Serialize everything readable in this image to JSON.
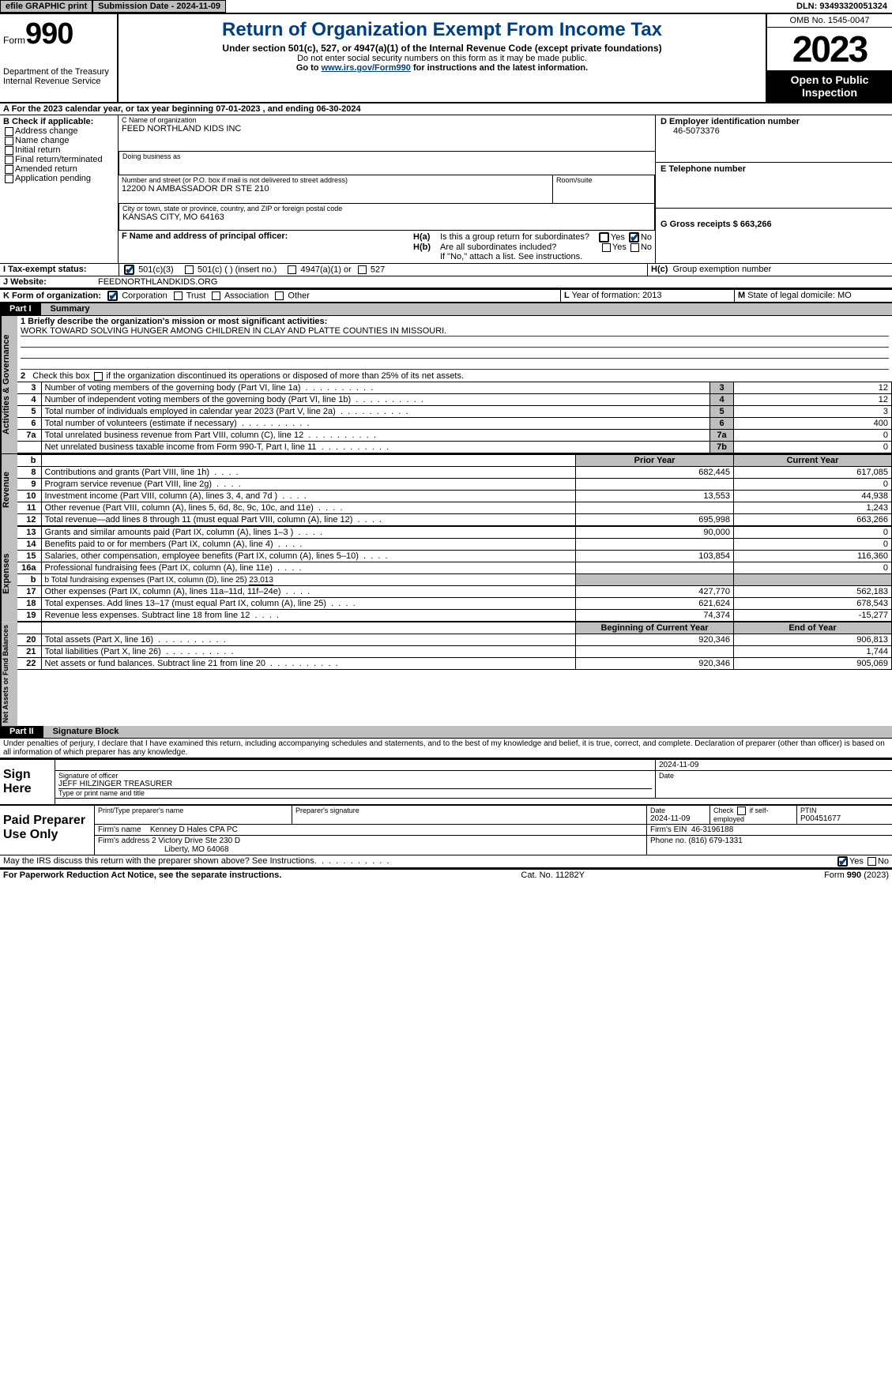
{
  "topbar": {
    "print_label": "efile GRAPHIC print",
    "submission_label": "Submission Date - 2024-11-09",
    "dln_label": "DLN: 93493320051324"
  },
  "header": {
    "form_word": "Form",
    "form_num": "990",
    "dept": "Department of the Treasury Internal Revenue Service",
    "title": "Return of Organization Exempt From Income Tax",
    "sub": "Under section 501(c), 527, or 4947(a)(1) of the Internal Revenue Code (except private foundations)",
    "note1": "Do not enter social security numbers on this form as it may be made public.",
    "note2_pre": "Go to ",
    "note2_link": "www.irs.gov/Form990",
    "note2_post": " for instructions and the latest information.",
    "omb": "OMB No. 1545-0047",
    "year": "2023",
    "inspect": "Open to Public Inspection"
  },
  "row_a": "A For the 2023 calendar year, or tax year beginning 07-01-2023    , and ending 06-30-2024",
  "section_b": {
    "title": "B Check if applicable:",
    "options": [
      "Address change",
      "Name change",
      "Initial return",
      "Final return/terminated",
      "Amended return",
      "Application pending"
    ]
  },
  "section_c": {
    "name_label": "C Name of organization",
    "name": "FEED NORTHLAND KIDS INC",
    "dba_label": "Doing business as",
    "addr_label": "Number and street (or P.O. box if mail is not delivered to street address)",
    "room_label": "Room/suite",
    "addr": "12200 N AMBASSADOR DR STE 210",
    "city_label": "City or town, state or province, country, and ZIP or foreign postal code",
    "city": "KANSAS CITY, MO  64163"
  },
  "section_d": {
    "label": "D Employer identification number",
    "value": "46-5073376"
  },
  "section_e": {
    "label": "E Telephone number"
  },
  "section_f": {
    "label": "F  Name and address of principal officer:"
  },
  "section_g": {
    "label": "G Gross receipts $ 663,266"
  },
  "section_h": {
    "a": "H(a)  Is this a group return for subordinates?",
    "b": "H(b)  Are all subordinates included?",
    "b_note": "If \"No,\" attach a list. See instructions.",
    "c": "H(c)  Group exemption number",
    "yes": "Yes",
    "no": "No"
  },
  "row_i": {
    "label": "I   Tax-exempt status:",
    "o1": "501(c)(3)",
    "o2": "501(c) (   ) (insert no.)",
    "o3": "4947(a)(1) or",
    "o4": "527"
  },
  "row_j": {
    "label": "J   Website:",
    "value": "FEEDNORTHLANDKIDS.ORG"
  },
  "row_k": {
    "label": "K Form of organization:",
    "o1": "Corporation",
    "o2": "Trust",
    "o3": "Association",
    "o4": "Other",
    "l_label": "L Year of formation: 2013",
    "m_label": "M State of legal domicile: MO"
  },
  "part1": {
    "bar": "Part I",
    "title": "Summary"
  },
  "summary": {
    "vlabels": {
      "gov": "Activities & Governance",
      "rev": "Revenue",
      "exp": "Expenses",
      "net": "Net Assets or Fund Balances"
    },
    "q1_label": "1   Briefly describe the organization's mission or most significant activities:",
    "q1_value": "WORK TOWARD SOLVING HUNGER AMONG CHILDREN IN CLAY AND PLATTE COUNTIES IN MISSOURI.",
    "q2": "2   Check this box        if the organization discontinued its operations or disposed of more than 25% of its net assets.",
    "gov_rows": [
      {
        "n": "3",
        "desc": "Number of voting members of the governing body (Part VI, line 1a)",
        "box": "3",
        "val": "12"
      },
      {
        "n": "4",
        "desc": "Number of independent voting members of the governing body (Part VI, line 1b)",
        "box": "4",
        "val": "12"
      },
      {
        "n": "5",
        "desc": "Total number of individuals employed in calendar year 2023 (Part V, line 2a)",
        "box": "5",
        "val": "3"
      },
      {
        "n": "6",
        "desc": "Total number of volunteers (estimate if necessary)",
        "box": "6",
        "val": "400"
      },
      {
        "n": "7a",
        "desc": "Total unrelated business revenue from Part VIII, column (C), line 12",
        "box": "7a",
        "val": "0"
      },
      {
        "n": "",
        "desc": "Net unrelated business taxable income from Form 990-T, Part I, line 11",
        "box": "7b",
        "val": "0"
      }
    ],
    "col_headers": {
      "b": "b",
      "prior": "Prior Year",
      "curr": "Current Year",
      "begin": "Beginning of Current Year",
      "end": "End of Year"
    },
    "rev_rows": [
      {
        "n": "8",
        "desc": "Contributions and grants (Part VIII, line 1h)",
        "p": "682,445",
        "c": "617,085"
      },
      {
        "n": "9",
        "desc": "Program service revenue (Part VIII, line 2g)",
        "p": "",
        "c": "0"
      },
      {
        "n": "10",
        "desc": "Investment income (Part VIII, column (A), lines 3, 4, and 7d )",
        "p": "13,553",
        "c": "44,938"
      },
      {
        "n": "11",
        "desc": "Other revenue (Part VIII, column (A), lines 5, 6d, 8c, 9c, 10c, and 11e)",
        "p": "",
        "c": "1,243"
      },
      {
        "n": "12",
        "desc": "Total revenue—add lines 8 through 11 (must equal Part VIII, column (A), line 12)",
        "p": "695,998",
        "c": "663,266"
      }
    ],
    "exp_rows": [
      {
        "n": "13",
        "desc": "Grants and similar amounts paid (Part IX, column (A), lines 1–3 )",
        "p": "90,000",
        "c": "0"
      },
      {
        "n": "14",
        "desc": "Benefits paid to or for members (Part IX, column (A), line 4)",
        "p": "",
        "c": "0"
      },
      {
        "n": "15",
        "desc": "Salaries, other compensation, employee benefits (Part IX, column (A), lines 5–10)",
        "p": "103,854",
        "c": "116,360"
      },
      {
        "n": "16a",
        "desc": "Professional fundraising fees (Part IX, column (A), line 11e)",
        "p": "",
        "c": "0"
      }
    ],
    "exp_16b_pre": "b   Total fundraising expenses (Part IX, column (D), line 25) ",
    "exp_16b_val": "23,013",
    "exp_rows2": [
      {
        "n": "17",
        "desc": "Other expenses (Part IX, column (A), lines 11a–11d, 11f–24e)",
        "p": "427,770",
        "c": "562,183"
      },
      {
        "n": "18",
        "desc": "Total expenses. Add lines 13–17 (must equal Part IX, column (A), line 25)",
        "p": "621,624",
        "c": "678,543"
      },
      {
        "n": "19",
        "desc": "Revenue less expenses. Subtract line 18 from line 12",
        "p": "74,374",
        "c": "-15,277"
      }
    ],
    "net_rows": [
      {
        "n": "20",
        "desc": "Total assets (Part X, line 16)",
        "p": "920,346",
        "c": "906,813"
      },
      {
        "n": "21",
        "desc": "Total liabilities (Part X, line 26)",
        "p": "",
        "c": "1,744"
      },
      {
        "n": "22",
        "desc": "Net assets or fund balances. Subtract line 21 from line 20",
        "p": "920,346",
        "c": "905,069"
      }
    ]
  },
  "part2": {
    "bar": "Part II",
    "title": "Signature Block"
  },
  "penalties": "Under penalties of perjury, I declare that I have examined this return, including accompanying schedules and statements, and to the best of my knowledge and belief, it is true, correct, and complete. Declaration of preparer (other than officer) is based on all information of which preparer has any knowledge.",
  "sign": {
    "here_label": "Sign Here",
    "sig_label": "Signature of officer",
    "officer": "JEFF HILZINGER  TREASURER",
    "type_label": "Type or print name and title",
    "date_label": "Date",
    "date": "2024-11-09"
  },
  "paid": {
    "label": "Paid Preparer Use Only",
    "name_label": "Print/Type preparer's name",
    "psig_label": "Preparer's signature",
    "pdate_label": "Date",
    "pdate": "2024-11-09",
    "self_label": "Check         if self-employed",
    "ptin_label": "PTIN",
    "ptin": "P00451677",
    "firm_label": "Firm's name",
    "firm": "Kenney D Hales CPA PC",
    "fein_label": "Firm's EIN",
    "fein": "46-3196188",
    "addr_label": "Firm's address",
    "addr1": "2 Victory Drive Ste 230 D",
    "addr2": "Liberty, MO  64068",
    "phone_label": "Phone no.",
    "phone": "(816) 679-1331"
  },
  "discuss": {
    "q": "May the IRS discuss this return with the preparer shown above? See Instructions.",
    "yes": "Yes",
    "no": "No"
  },
  "footer": {
    "left": "For Paperwork Reduction Act Notice, see the separate instructions.",
    "mid": "Cat. No. 11282Y",
    "right_pre": "Form ",
    "right_bold": "990",
    "right_post": " (2023)"
  }
}
